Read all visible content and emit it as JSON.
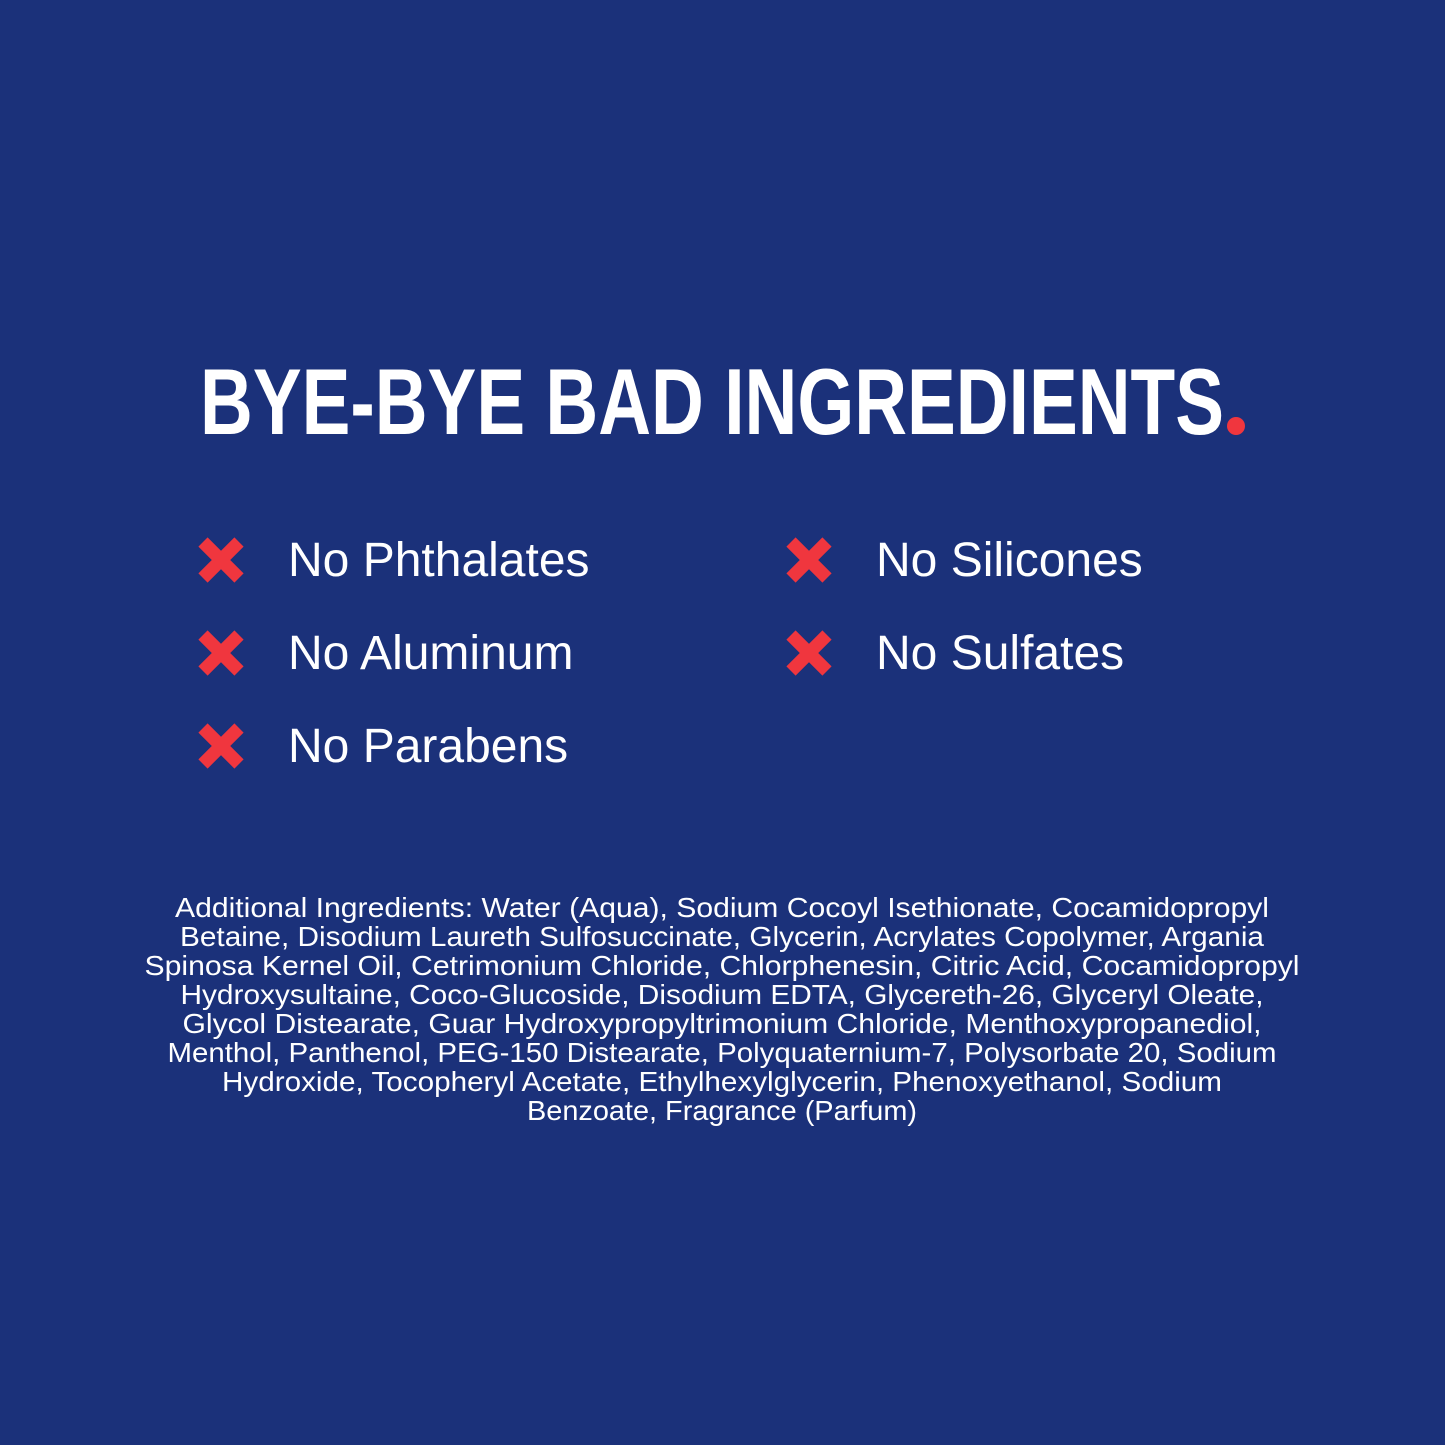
{
  "colors": {
    "background": "#1b317a",
    "accent": "#f0363e",
    "text": "#ffffff"
  },
  "heading": {
    "text": "BYE-BYE BAD INGREDIENTS",
    "period": "."
  },
  "free_from": {
    "icon": "x-mark-icon",
    "items": [
      {
        "label": "No Phthalates"
      },
      {
        "label": "No Aluminum"
      },
      {
        "label": "No Parabens"
      },
      {
        "label": "No Silicones"
      },
      {
        "label": "No Sulfates"
      }
    ]
  },
  "additional_ingredients": {
    "lines": [
      "Additional Ingredients: Water (Aqua), Sodium Cocoyl Isethionate, Cocamidopropyl",
      "Betaine, Disodium Laureth Sulfosuccinate, Glycerin, Acrylates Copolymer, Argania",
      "Spinosa Kernel Oil, Cetrimonium Chloride, Chlorphenesin, Citric Acid, Cocamidopropyl",
      "Hydroxysultaine, Coco-Glucoside, Disodium EDTA, Glycereth-26, Glyceryl Oleate,",
      "Glycol Distearate, Guar Hydroxypropyltrimonium Chloride, Menthoxypropanediol,",
      "Menthol, Panthenol, PEG-150 Distearate, Polyquaternium-7, Polysorbate 20, Sodium",
      "Hydroxide, Tocopheryl Acetate, Ethylhexylglycerin, Phenoxyethanol, Sodium",
      "Benzoate, Fragrance (Parfum)"
    ]
  }
}
